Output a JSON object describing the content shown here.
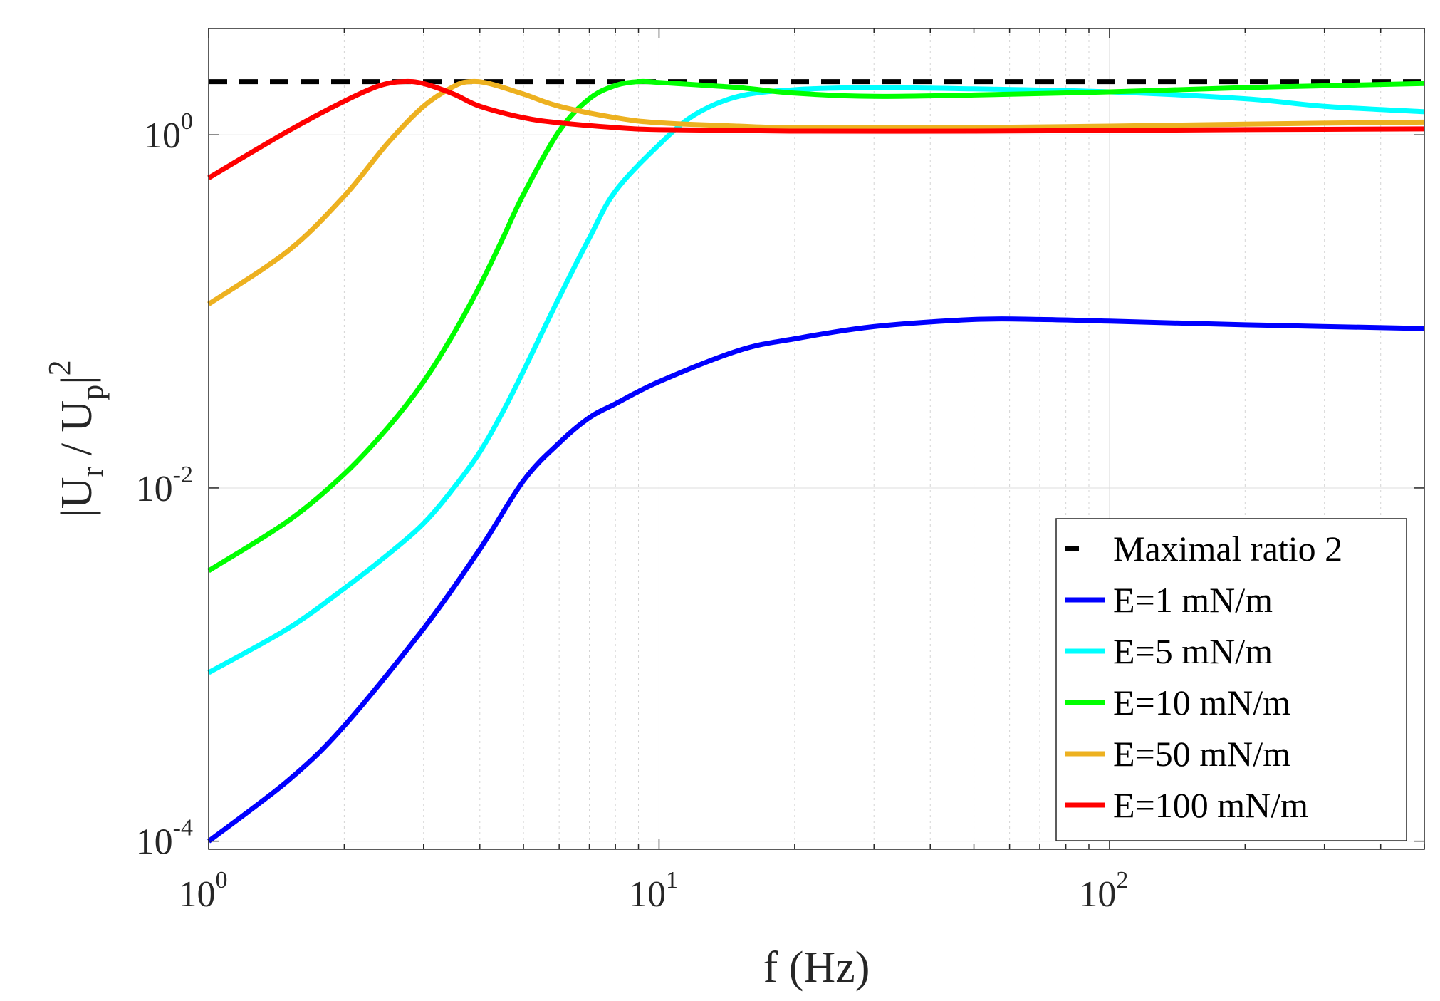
{
  "chart_data": {
    "type": "line",
    "xscale": "log",
    "yscale": "log",
    "xlim": [
      1,
      500
    ],
    "ylim": [
      9e-05,
      4
    ],
    "grid": true,
    "legend_position": "bottom-right",
    "x_ticks": [
      {
        "value": 1,
        "base": "10",
        "exp": "0"
      },
      {
        "value": 10,
        "base": "10",
        "exp": "1"
      },
      {
        "value": 100,
        "base": "10",
        "exp": "2"
      }
    ],
    "y_ticks": [
      {
        "value": 1,
        "base": "10",
        "exp": "0"
      },
      {
        "value": 0.01,
        "base": "10",
        "exp": "-2"
      },
      {
        "value": 0.0001,
        "base": "10",
        "exp": "-4"
      }
    ],
    "xlabel": "f (Hz)",
    "ylabel": {
      "bar1": "|",
      "u1": "U",
      "sub1": "r",
      "slash": " / ",
      "u2": "U",
      "sub2": "p",
      "bar2": "|",
      "sup": "2"
    },
    "series": [
      {
        "name": "Maximal ratio 2",
        "color": "#000000",
        "style": "dashed",
        "points": [
          [
            1,
            2
          ],
          [
            500,
            2
          ]
        ]
      },
      {
        "name": "E=1 mN/m",
        "color": "#0000ff",
        "style": "solid",
        "points": [
          [
            1,
            0.0001
          ],
          [
            1.5,
            0.00022
          ],
          [
            2,
            0.00045
          ],
          [
            3,
            0.0016
          ],
          [
            4,
            0.0045
          ],
          [
            5,
            0.011
          ],
          [
            6,
            0.018
          ],
          [
            7,
            0.025
          ],
          [
            8,
            0.03
          ],
          [
            10,
            0.04
          ],
          [
            15,
            0.06
          ],
          [
            20,
            0.07
          ],
          [
            30,
            0.082
          ],
          [
            50,
            0.09
          ],
          [
            70,
            0.09
          ],
          [
            100,
            0.088
          ],
          [
            200,
            0.084
          ],
          [
            500,
            0.08
          ]
        ]
      },
      {
        "name": "E=5 mN/m",
        "color": "#00ffff",
        "style": "solid",
        "points": [
          [
            1,
            0.0009
          ],
          [
            1.5,
            0.0016
          ],
          [
            2,
            0.0027
          ],
          [
            2.5,
            0.0042
          ],
          [
            3,
            0.0063
          ],
          [
            3.5,
            0.01
          ],
          [
            4,
            0.016
          ],
          [
            4.5,
            0.027
          ],
          [
            5,
            0.046
          ],
          [
            6,
            0.12
          ],
          [
            7,
            0.26
          ],
          [
            8,
            0.48
          ],
          [
            10,
            0.88
          ],
          [
            12,
            1.3
          ],
          [
            15,
            1.65
          ],
          [
            20,
            1.8
          ],
          [
            30,
            1.85
          ],
          [
            50,
            1.82
          ],
          [
            100,
            1.75
          ],
          [
            200,
            1.6
          ],
          [
            300,
            1.45
          ],
          [
            500,
            1.35
          ]
        ]
      },
      {
        "name": "E=10 mN/m",
        "color": "#00ff00",
        "style": "solid",
        "points": [
          [
            1,
            0.0034
          ],
          [
            1.5,
            0.0065
          ],
          [
            2,
            0.012
          ],
          [
            2.5,
            0.022
          ],
          [
            3,
            0.04
          ],
          [
            3.5,
            0.075
          ],
          [
            4,
            0.14
          ],
          [
            4.5,
            0.26
          ],
          [
            5,
            0.46
          ],
          [
            6,
            1.05
          ],
          [
            7,
            1.6
          ],
          [
            8,
            1.9
          ],
          [
            9,
            2.0
          ],
          [
            10,
            1.98
          ],
          [
            15,
            1.85
          ],
          [
            20,
            1.72
          ],
          [
            30,
            1.65
          ],
          [
            50,
            1.68
          ],
          [
            100,
            1.75
          ],
          [
            200,
            1.85
          ],
          [
            500,
            1.95
          ]
        ]
      },
      {
        "name": "E=50 mN/m",
        "color": "#edb120",
        "style": "solid",
        "points": [
          [
            1,
            0.11
          ],
          [
            1.5,
            0.22
          ],
          [
            2,
            0.45
          ],
          [
            2.5,
            0.9
          ],
          [
            3,
            1.45
          ],
          [
            3.5,
            1.88
          ],
          [
            3.8,
            2.0
          ],
          [
            4.2,
            1.95
          ],
          [
            5,
            1.7
          ],
          [
            6,
            1.45
          ],
          [
            8,
            1.25
          ],
          [
            10,
            1.17
          ],
          [
            15,
            1.12
          ],
          [
            20,
            1.1
          ],
          [
            50,
            1.1
          ],
          [
            100,
            1.12
          ],
          [
            200,
            1.15
          ],
          [
            500,
            1.18
          ]
        ]
      },
      {
        "name": "E=100 mN/m",
        "color": "#ff0000",
        "style": "solid",
        "points": [
          [
            1,
            0.57
          ],
          [
            1.5,
            1.05
          ],
          [
            2,
            1.55
          ],
          [
            2.4,
            1.9
          ],
          [
            2.7,
            2.0
          ],
          [
            3,
            1.95
          ],
          [
            3.5,
            1.7
          ],
          [
            4,
            1.45
          ],
          [
            5,
            1.25
          ],
          [
            6,
            1.17
          ],
          [
            8,
            1.1
          ],
          [
            10,
            1.07
          ],
          [
            20,
            1.05
          ],
          [
            50,
            1.05
          ],
          [
            100,
            1.06
          ],
          [
            200,
            1.07
          ],
          [
            500,
            1.08
          ]
        ]
      }
    ]
  }
}
